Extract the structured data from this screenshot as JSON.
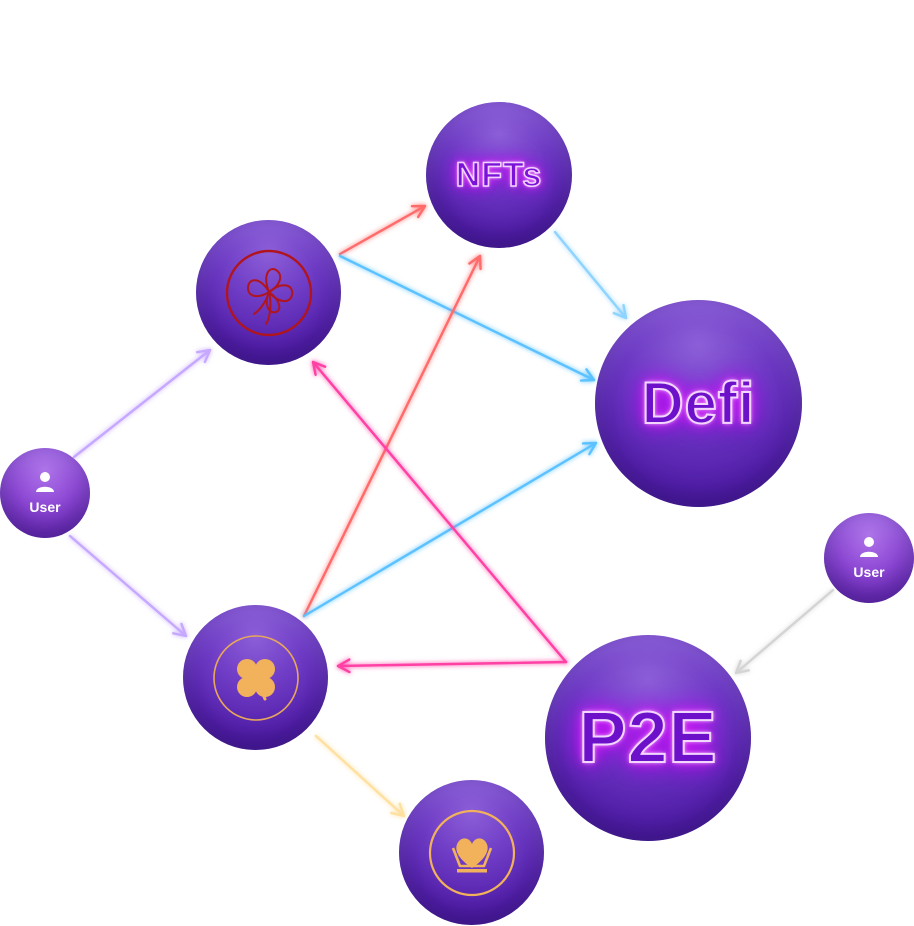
{
  "diagram": {
    "nodes": {
      "nfts": {
        "label": "NFTs"
      },
      "defi": {
        "label": "Defi"
      },
      "p2e": {
        "label": "P2E"
      },
      "user_left": {
        "label": "User",
        "icon": "person-icon"
      },
      "user_right": {
        "label": "User",
        "icon": "person-icon"
      },
      "clover_red": {
        "icon": "clover-outline-icon",
        "color": "#b0151e"
      },
      "clover_gold": {
        "icon": "clover-gold-icon",
        "color": "#f2b25c"
      },
      "crown_heart": {
        "icon": "heart-crown-icon",
        "color": "#f2b25c"
      }
    },
    "edges": [
      {
        "from": "user_left",
        "to": "clover_red",
        "color": "#c6a8ff"
      },
      {
        "from": "user_left",
        "to": "clover_gold",
        "color": "#c6a8ff"
      },
      {
        "from": "clover_red",
        "to": "nfts",
        "color": "#ff6b6b"
      },
      {
        "from": "clover_red",
        "to": "defi",
        "color": "#5cc2ff"
      },
      {
        "from": "nfts",
        "to": "defi",
        "color": "#8fd3ff"
      },
      {
        "from": "clover_gold",
        "to": "nfts",
        "color": "#ff6b6b"
      },
      {
        "from": "clover_gold",
        "to": "defi",
        "color": "#5cc2ff"
      },
      {
        "from": "p2e",
        "to": "clover_red",
        "color": "#ff3fa4"
      },
      {
        "from": "p2e",
        "to": "clover_gold",
        "color": "#ff3fa4"
      },
      {
        "from": "clover_gold",
        "to": "crown_heart",
        "color": "#ffe0a0"
      },
      {
        "from": "user_right",
        "to": "p2e",
        "color": "#d4d4d4"
      }
    ]
  }
}
